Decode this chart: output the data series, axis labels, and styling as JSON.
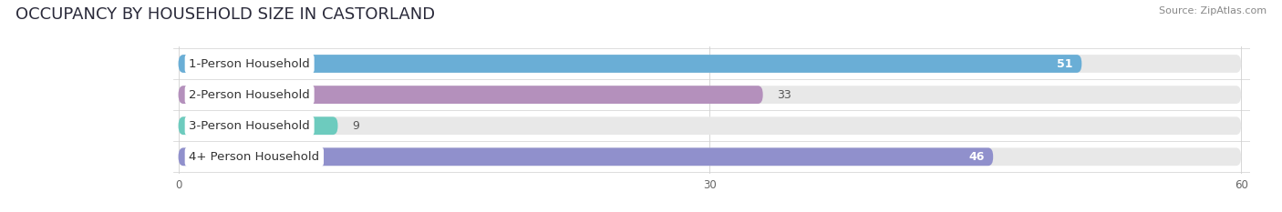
{
  "title": "OCCUPANCY BY HOUSEHOLD SIZE IN CASTORLAND",
  "source": "Source: ZipAtlas.com",
  "categories": [
    "1-Person Household",
    "2-Person Household",
    "3-Person Household",
    "4+ Person Household"
  ],
  "values": [
    51,
    33,
    9,
    46
  ],
  "bar_colors": [
    "#6aaed6",
    "#b490bc",
    "#6dcbbe",
    "#9090cc"
  ],
  "value_colors": [
    "#ffffff",
    "#555555",
    "#555555",
    "#ffffff"
  ],
  "background_color": "#ffffff",
  "track_color": "#e8e8e8",
  "xlim_max": 60,
  "xticks": [
    0,
    30,
    60
  ],
  "title_fontsize": 13,
  "source_fontsize": 8,
  "label_fontsize": 9.5,
  "value_fontsize": 9,
  "bar_height": 0.58,
  "bar_gap": 1.0
}
